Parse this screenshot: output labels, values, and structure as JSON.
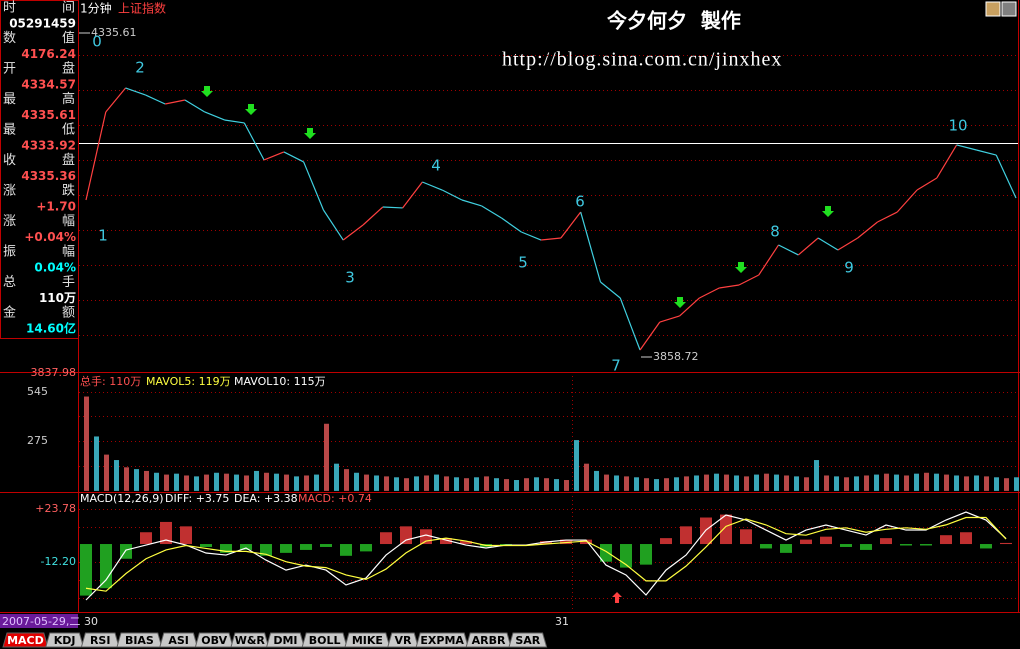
{
  "header": {
    "period": "1分钟",
    "index_name": "上证指数",
    "watermark": "今夕何夕  製作",
    "url": "http://blog.sina.com.cn/jinxhex"
  },
  "info_panel": [
    {
      "label": "时间",
      "value": "05291459"
    },
    {
      "label": "数值",
      "value": "4176.24"
    },
    {
      "label": "开盘",
      "value": "4334.57"
    },
    {
      "label": "最高",
      "value": "4335.61"
    },
    {
      "label": "最低",
      "value": "4333.92"
    },
    {
      "label": "收盘",
      "value": "4335.36"
    },
    {
      "label": "涨跌",
      "value": "+1.70"
    },
    {
      "label": "涨幅",
      "value": "+0.04%"
    },
    {
      "label": "振幅",
      "value": "0.04%"
    },
    {
      "label": "总手",
      "value": "110万"
    },
    {
      "label": "金额",
      "value": "14.60亿"
    }
  ],
  "price_chart": {
    "high": 4335.61,
    "low": 3858.72,
    "bottom": 3837.98,
    "values": [
      4089.8,
      4219.4,
      4254.7,
      4244.4,
      4231.1,
      4237.0,
      4219.4,
      4207.6,
      4203.2,
      4148.7,
      4160.5,
      4145.8,
      4075.1,
      4030.9,
      4053.0,
      4079.5,
      4078.1,
      4116.3,
      4104.5,
      4089.8,
      4081.0,
      4063.3,
      4042.7,
      4030.9,
      4033.9,
      4072.1,
      3969.1,
      3945.6,
      3869.0,
      3910.2,
      3919.1,
      3945.6,
      3960.3,
      3964.7,
      3979.4,
      4023.6,
      4008.9,
      4033.9,
      4016.2,
      4033.9,
      4057.4,
      4072.1,
      4104.5,
      4122.2,
      4170.8,
      4163.4,
      4156.0,
      4092.7
    ],
    "wave_labels": [
      "0",
      "1",
      "2",
      "3",
      "4",
      "5",
      "6",
      "7",
      "8",
      "9",
      "10"
    ]
  },
  "volume_chart": {
    "legend": [
      "总手: 110万",
      "MAVOL5: 119万",
      "MAVOL10: 115万"
    ],
    "ticks": [
      545,
      275
    ],
    "values": [
      520,
      300,
      200,
      170,
      130,
      120,
      110,
      100,
      90,
      95,
      85,
      80,
      90,
      100,
      95,
      90,
      85,
      110,
      100,
      95,
      90,
      80,
      85,
      90,
      370,
      150,
      120,
      100,
      90,
      85,
      80,
      75,
      70,
      80,
      85,
      90,
      80,
      75,
      70,
      75,
      80,
      70,
      65,
      60,
      70,
      75,
      70,
      65,
      60,
      280,
      150,
      110,
      90,
      85,
      80,
      75,
      70,
      65,
      70,
      75,
      80,
      85,
      90,
      95,
      90,
      85,
      80,
      90,
      95,
      90,
      85,
      80,
      75,
      170,
      85,
      80,
      75,
      80,
      85,
      90,
      95,
      90,
      85,
      95,
      100,
      95,
      90,
      85,
      80,
      85,
      80,
      75,
      70,
      75
    ]
  },
  "macd_chart": {
    "legend": [
      "MACD(12,26,9)",
      "DIFF: +3.75",
      "DEA: +3.38",
      "MACD: +0.74"
    ],
    "ticks": [
      {
        "value": 23.78,
        "label": "+23.78"
      },
      {
        "value": -12.2,
        "label": "-12.20"
      }
    ],
    "diff": [
      -38.0,
      -24.4,
      -4.1,
      -0.7,
      2.7,
      -0.7,
      -6.1,
      -7.5,
      -2.7,
      -10.9,
      -17.7,
      -14.3,
      -17.7,
      -27.8,
      -23.1,
      -7.5,
      2.7,
      6.1,
      2.7,
      -0.7,
      -2.7,
      -0.7,
      -0.7,
      1.4,
      2.7,
      2.7,
      -14.3,
      -21.0,
      -34.6,
      -17.7,
      -7.5,
      9.5,
      19.7,
      16.3,
      9.5,
      2.7,
      9.5,
      12.9,
      9.5,
      6.1,
      12.9,
      9.5,
      9.5,
      16.3,
      21.7,
      16.3,
      3.75
    ],
    "dea": [
      -30,
      -32,
      -20,
      -10,
      -4,
      -1,
      -3,
      -5,
      -5,
      -7,
      -12,
      -15,
      -16,
      -21,
      -24,
      -17,
      -6,
      2,
      4,
      2,
      -1,
      -1,
      -1,
      0,
      1,
      2,
      -5,
      -14,
      -25,
      -25,
      -15,
      -2,
      12,
      17,
      13,
      7,
      6,
      10,
      11,
      8,
      10,
      11,
      10,
      13,
      18,
      18,
      3.38
    ],
    "histogram": [
      -35,
      -30,
      -10,
      8,
      15,
      12,
      -2,
      -6,
      -4,
      -8,
      -6,
      -4,
      -2,
      -8,
      -5,
      8,
      12,
      10,
      4,
      2,
      -2,
      -1,
      0,
      2,
      3,
      3,
      -12,
      -16,
      -14,
      4,
      12,
      18,
      20,
      10,
      -3,
      -6,
      3,
      5,
      -2,
      -4,
      4,
      -1,
      -1,
      6,
      8,
      -3,
      0.74
    ]
  },
  "footer": {
    "date": "2007-05-29,二",
    "day_labels": [
      "30",
      "31"
    ],
    "tabs": [
      "MACD",
      "KDJ",
      "RSI",
      "BIAS",
      "ASI",
      "OBV",
      "W&R",
      "DMI",
      "BOLL",
      "MIKE",
      "VR",
      "EXPMA",
      "ARBR",
      "SAR"
    ]
  }
}
